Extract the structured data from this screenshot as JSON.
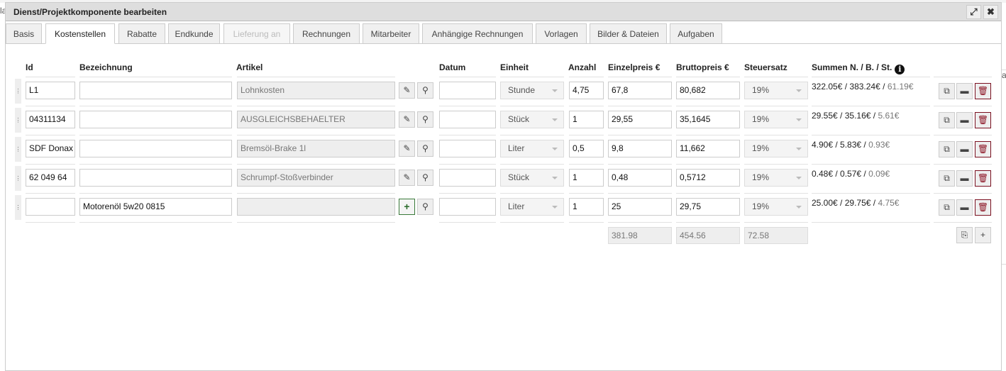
{
  "background": {
    "left_fragment": "la",
    "right_fragment": "a"
  },
  "dialog": {
    "title": "Dienst/Projektkomponente bearbeiten",
    "maximize_icon": "expand-icon",
    "close_icon": "close-icon"
  },
  "tabs": [
    {
      "label": "Basis",
      "state": "normal"
    },
    {
      "label": "Kostenstellen",
      "state": "active"
    },
    {
      "label": "Rabatte",
      "state": "normal"
    },
    {
      "label": "Endkunde",
      "state": "normal"
    },
    {
      "label": "Lieferung an",
      "state": "disabled"
    },
    {
      "label": "Rechnungen",
      "state": "normal"
    },
    {
      "label": "Mitarbeiter",
      "state": "normal"
    },
    {
      "label": "Anhängige Rechnungen",
      "state": "normal"
    },
    {
      "label": "Vorlagen",
      "state": "normal"
    },
    {
      "label": "Bilder & Dateien",
      "state": "normal"
    },
    {
      "label": "Aufgaben",
      "state": "normal"
    }
  ],
  "table": {
    "headers": {
      "id": "Id",
      "bezeichnung": "Bezeichnung",
      "artikel": "Artikel",
      "datum": "Datum",
      "einheit": "Einheit",
      "anzahl": "Anzahl",
      "einzelpreis": "Einzelpreis €",
      "bruttopreis": "Bruttopreis €",
      "steuersatz": "Steuersatz",
      "summen": "Summen N. / B. / St."
    },
    "rows": [
      {
        "id": "L1",
        "bezeichnung": "",
        "artikel": "Lohnkosten",
        "datum": "",
        "einheit": "Stunde",
        "anzahl": "4,75",
        "einzelpreis": "67,8",
        "bruttopreis": "80,682",
        "steuersatz": "19%",
        "sum_net": "322.05€",
        "sum_gross": "383.24€",
        "sum_tax": "61.19€",
        "artikel_action": "edit"
      },
      {
        "id": "04311134",
        "bezeichnung": "",
        "artikel": "AUSGLEICHSBEHAELTER",
        "datum": "",
        "einheit": "Stück",
        "anzahl": "1",
        "einzelpreis": "29,55",
        "bruttopreis": "35,1645",
        "steuersatz": "19%",
        "sum_net": "29.55€",
        "sum_gross": "35.16€",
        "sum_tax": "5.61€",
        "artikel_action": "edit"
      },
      {
        "id": "SDF Donax",
        "bezeichnung": "",
        "artikel": "Bremsöl-Brake 1l",
        "datum": "",
        "einheit": "Liter",
        "anzahl": "0,5",
        "einzelpreis": "9,8",
        "bruttopreis": "11,662",
        "steuersatz": "19%",
        "sum_net": "4.90€",
        "sum_gross": "5.83€",
        "sum_tax": "0.93€",
        "artikel_action": "edit"
      },
      {
        "id": "62 049 64",
        "bezeichnung": "",
        "artikel": "Schrumpf-Stoßverbinder",
        "datum": "",
        "einheit": "Stück",
        "anzahl": "1",
        "einzelpreis": "0,48",
        "bruttopreis": "0,5712",
        "steuersatz": "19%",
        "sum_net": "0.48€",
        "sum_gross": "0.57€",
        "sum_tax": "0.09€",
        "artikel_action": "edit"
      },
      {
        "id": "",
        "bezeichnung": "Motorenöl 5w20 0815",
        "artikel": "",
        "datum": "",
        "einheit": "Liter",
        "anzahl": "1",
        "einzelpreis": "25",
        "bruttopreis": "29,75",
        "steuersatz": "19%",
        "sum_net": "25.00€",
        "sum_gross": "29.75€",
        "sum_tax": "4.75€",
        "artikel_action": "add"
      }
    ],
    "totals": {
      "einzelpreis": "381.98",
      "bruttopreis": "454.56",
      "steuersatz": "72.58"
    }
  },
  "colors": {
    "delete": "#8a1020",
    "add": "#2a6a2a",
    "titlebar": "#dedede"
  }
}
